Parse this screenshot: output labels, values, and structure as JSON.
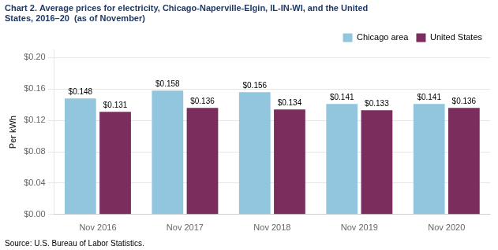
{
  "chart_data": {
    "type": "bar",
    "title": [
      "Chart 2. Average prices for electricity, Chicago-Naperville-Elgin, IL-IN-WI, and the United",
      "States, 2016–20  (as of November)"
    ],
    "ylabel": "Per kWh",
    "annotations": [
      "Source: U.S. Bureau of Labor Statistics."
    ],
    "categories": [
      "Nov 2016",
      "Nov 2017",
      "Nov 2018",
      "Nov 2019",
      "Nov 2020"
    ],
    "series": [
      {
        "name": "Chicago area",
        "color": "#92C5DE",
        "values": [
          0.148,
          0.158,
          0.156,
          0.141,
          0.141
        ],
        "value_labels": [
          "$0.148",
          "$0.158",
          "$0.156",
          "$0.141",
          "$0.141"
        ]
      },
      {
        "name": "United States",
        "color": "#7B2D5E",
        "values": [
          0.131,
          0.136,
          0.134,
          0.133,
          0.136
        ],
        "value_labels": [
          "$0.131",
          "$0.136",
          "$0.134",
          "$0.133",
          "$0.136"
        ]
      }
    ],
    "ylim": [
      0.0,
      0.21
    ],
    "yticks": [
      {
        "value": 0.0,
        "label": "$0.00"
      },
      {
        "value": 0.04,
        "label": "$0.04"
      },
      {
        "value": 0.08,
        "label": "$0.08"
      },
      {
        "value": 0.12,
        "label": "$0.12"
      },
      {
        "value": 0.16,
        "label": "$0.16"
      },
      {
        "value": 0.2,
        "label": "$0.20"
      }
    ],
    "grid": true,
    "legend": "top",
    "data_labels": true,
    "title_color": "#1F3864"
  }
}
